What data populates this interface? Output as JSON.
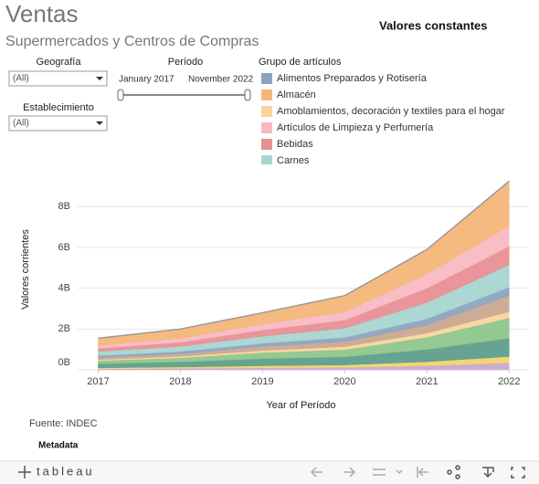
{
  "header": {
    "title": "Ventas",
    "subtitle": "Supermercados y Centros de Compras",
    "note": "Valores constantes"
  },
  "filters": {
    "geografia": {
      "label": "Geografía",
      "value": "(All)"
    },
    "periodo": {
      "label": "Período",
      "start": "January 2017",
      "end": "November 2022"
    },
    "establecimiento": {
      "label": "Establecimiento",
      "value": "(All)"
    },
    "legend_title": "Grupo de artículos"
  },
  "chart_data": {
    "type": "stacked_area",
    "x": [
      2017,
      2018,
      2019,
      2020,
      2021,
      2022
    ],
    "xlim": [
      2016.75,
      2022.23
    ],
    "xticks": [
      2017,
      2018,
      2019,
      2020,
      2021,
      2022
    ],
    "ylim": [
      0,
      9.4
    ],
    "yticks": [
      {
        "value": 0,
        "label": "0B"
      },
      {
        "value": 2,
        "label": "2B"
      },
      {
        "value": 4,
        "label": "4B"
      },
      {
        "value": 6,
        "label": "6B"
      },
      {
        "value": 8,
        "label": "8B"
      }
    ],
    "xlabel": "Year of Período",
    "ylabel": "Valores corrientes",
    "grid": true,
    "series": [
      {
        "color": "#c8a9cc",
        "values": [
          0.05,
          0.07,
          0.1,
          0.12,
          0.2,
          0.35
        ]
      },
      {
        "color": "#f0d56b",
        "values": [
          0.05,
          0.07,
          0.1,
          0.12,
          0.2,
          0.3
        ]
      },
      {
        "color": "#5f9e8c",
        "values": [
          0.2,
          0.25,
          0.35,
          0.4,
          0.6,
          0.9
        ]
      },
      {
        "color": "#8ec68b",
        "values": [
          0.15,
          0.2,
          0.3,
          0.35,
          0.6,
          1.0
        ]
      },
      {
        "name": "Amoblamientos, decoración y textiles para el hogar",
        "color": "#f9d59c",
        "values": [
          0.05,
          0.07,
          0.1,
          0.15,
          0.2,
          0.3
        ]
      },
      {
        "color": "#c9a88f",
        "values": [
          0.1,
          0.12,
          0.2,
          0.25,
          0.4,
          0.8
        ]
      },
      {
        "name": "Alimentos Preparados y Rotisería",
        "color": "#8ca3c0",
        "values": [
          0.1,
          0.12,
          0.15,
          0.2,
          0.3,
          0.4
        ]
      },
      {
        "name": "Carnes",
        "color": "#a8d5d0",
        "values": [
          0.2,
          0.25,
          0.35,
          0.45,
          0.8,
          1.1
        ]
      },
      {
        "name": "Bebidas",
        "color": "#e88f93",
        "values": [
          0.15,
          0.2,
          0.3,
          0.4,
          0.7,
          0.9
        ]
      },
      {
        "name": "Artículos de Limpieza y Perfumería",
        "color": "#f8b9c2",
        "values": [
          0.15,
          0.2,
          0.3,
          0.4,
          0.7,
          1.0
        ]
      },
      {
        "name": "Almacén",
        "color": "#f4b679",
        "values": [
          0.35,
          0.45,
          0.55,
          0.8,
          1.2,
          2.2
        ]
      }
    ]
  },
  "footer": {
    "source": "Fuente: INDEC",
    "metadata": "Metadata",
    "brand": "tableau"
  }
}
